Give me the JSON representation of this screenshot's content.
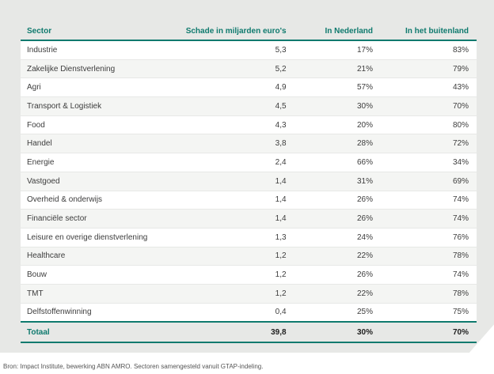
{
  "table": {
    "headers": [
      "Sector",
      "Schade in miljarden euro's",
      "In Nederland",
      "In het buitenland"
    ],
    "rows": [
      [
        "Industrie",
        "5,3",
        "17%",
        "83%"
      ],
      [
        "Zakelijke Dienstverlening",
        "5,2",
        "21%",
        "79%"
      ],
      [
        "Agri",
        "4,9",
        "57%",
        "43%"
      ],
      [
        "Transport & Logistiek",
        "4,5",
        "30%",
        "70%"
      ],
      [
        "Food",
        "4,3",
        "20%",
        "80%"
      ],
      [
        "Handel",
        "3,8",
        "28%",
        "72%"
      ],
      [
        "Energie",
        "2,4",
        "66%",
        "34%"
      ],
      [
        "Vastgoed",
        "1,4",
        "31%",
        "69%"
      ],
      [
        "Overheid & onderwijs",
        "1,4",
        "26%",
        "74%"
      ],
      [
        "Financiële sector",
        "1,4",
        "26%",
        "74%"
      ],
      [
        "Leisure en overige dienstverlening",
        "1,3",
        "24%",
        "76%"
      ],
      [
        "Healthcare",
        "1,2",
        "22%",
        "78%"
      ],
      [
        "Bouw",
        "1,2",
        "26%",
        "74%"
      ],
      [
        "TMT",
        "1,2",
        "22%",
        "78%"
      ],
      [
        "Delfstoffenwinning",
        "0,4",
        "25%",
        "75%"
      ]
    ],
    "total": [
      "Totaal",
      "39,8",
      "30%",
      "70%"
    ]
  },
  "source": "Bron: Impact Institute, bewerking ABN AMRO. Sectoren samengesteld vanuit GTAP-indeling.",
  "colors": {
    "accent": "#0f7a6e",
    "panel": "#e7e8e6"
  }
}
